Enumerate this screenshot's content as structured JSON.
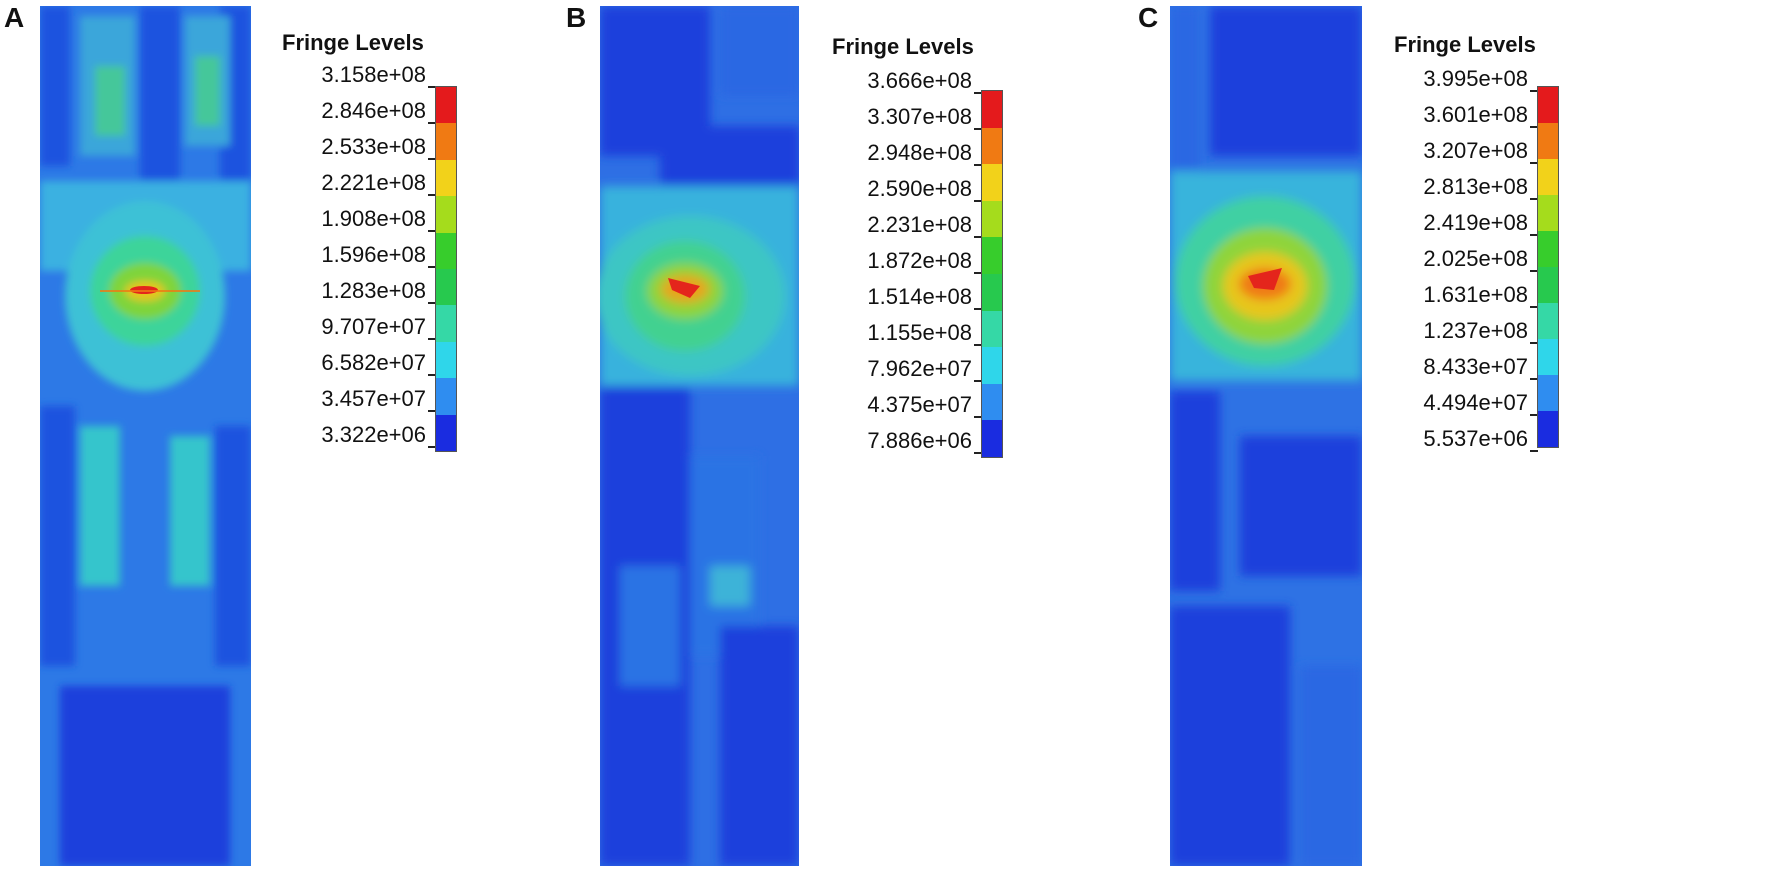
{
  "legend_colors": [
    "#e41a1c",
    "#f07a13",
    "#f2d21a",
    "#a5dc1c",
    "#37cd2c",
    "#27c94e",
    "#35d8a6",
    "#2fd6ea",
    "#2f8df0",
    "#1a2ce0"
  ],
  "panels": [
    {
      "letter": "A",
      "legend_title": "Fringe Levels",
      "levels": [
        "3.158e+08",
        "2.846e+08",
        "2.533e+08",
        "2.221e+08",
        "1.908e+08",
        "1.596e+08",
        "1.283e+08",
        "9.707e+07",
        "6.582e+07",
        "3.457e+07",
        "3.322e+06"
      ]
    },
    {
      "letter": "B",
      "legend_title": "Fringe Levels",
      "levels": [
        "3.666e+08",
        "3.307e+08",
        "2.948e+08",
        "2.590e+08",
        "2.231e+08",
        "1.872e+08",
        "1.514e+08",
        "1.155e+08",
        "7.962e+07",
        "4.375e+07",
        "7.886e+06"
      ]
    },
    {
      "letter": "C",
      "legend_title": "Fringe Levels",
      "levels": [
        "3.995e+08",
        "3.601e+08",
        "3.207e+08",
        "2.813e+08",
        "2.419e+08",
        "2.025e+08",
        "1.631e+08",
        "1.237e+08",
        "8.433e+07",
        "4.494e+07",
        "5.537e+06"
      ]
    }
  ]
}
